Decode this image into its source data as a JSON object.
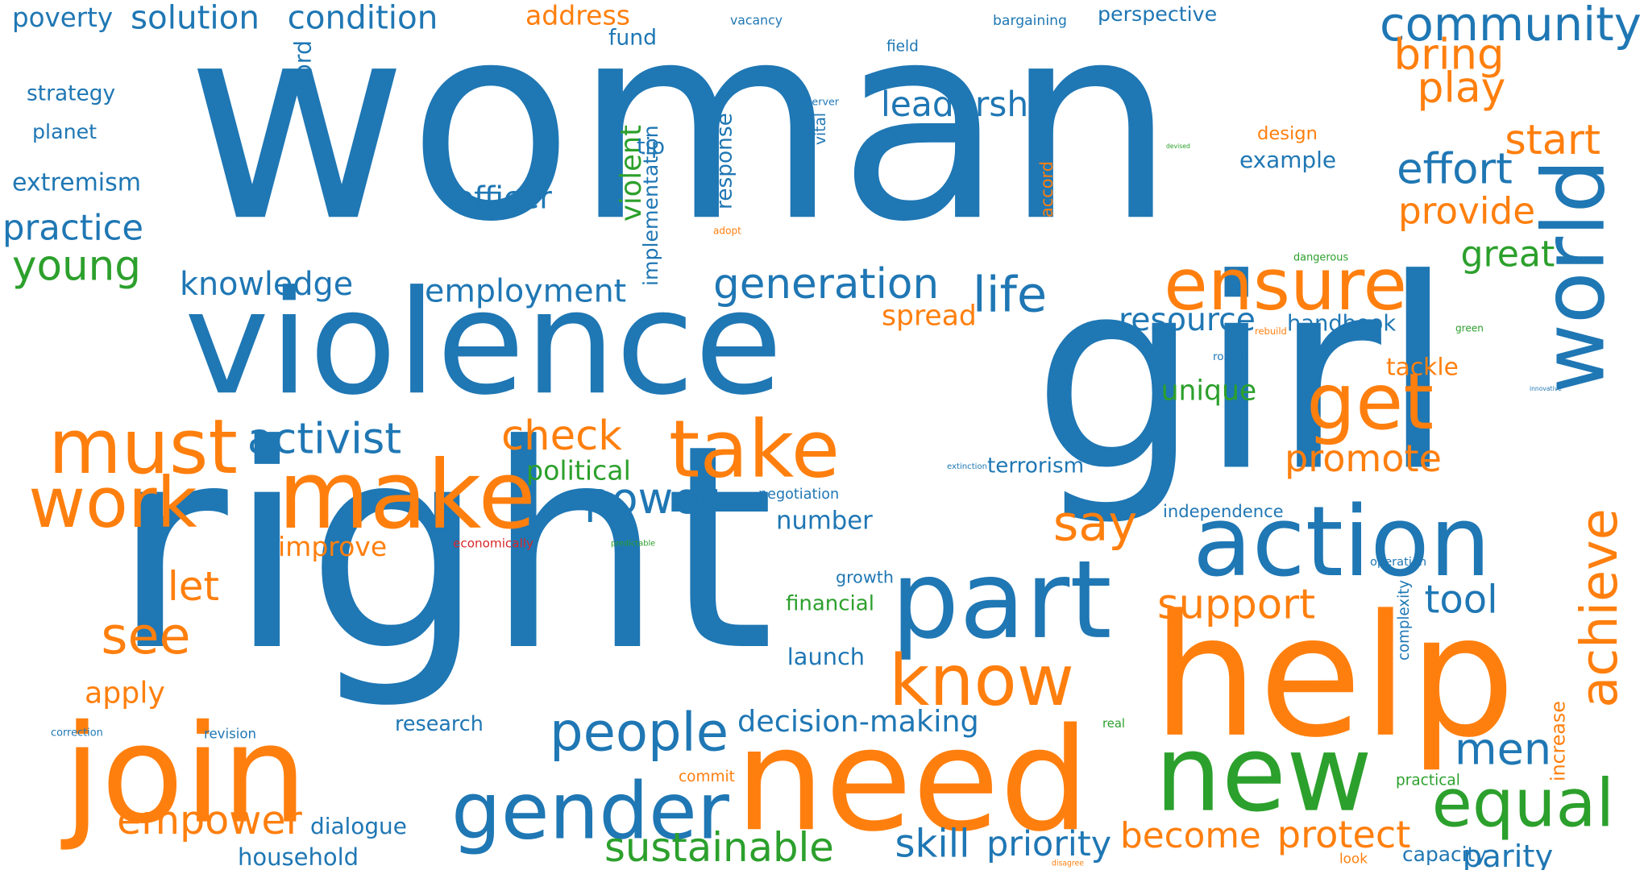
{
  "colors": {
    "blue": "#1f77b4",
    "orange": "#ff7f0e",
    "green": "#2ca02c",
    "red": "#d62728"
  },
  "words": [
    {
      "text": "woman",
      "color": "blue"
    },
    {
      "text": "girl",
      "color": "blue"
    },
    {
      "text": "violence",
      "color": "blue"
    },
    {
      "text": "right",
      "color": "blue"
    },
    {
      "text": "help",
      "color": "orange"
    },
    {
      "text": "need",
      "color": "orange"
    },
    {
      "text": "world",
      "color": "blue"
    },
    {
      "text": "join",
      "color": "orange"
    },
    {
      "text": "new",
      "color": "green"
    },
    {
      "text": "make",
      "color": "orange"
    },
    {
      "text": "action",
      "color": "blue"
    },
    {
      "text": "part",
      "color": "blue"
    },
    {
      "text": "achieve",
      "color": "orange"
    },
    {
      "text": "ensure",
      "color": "orange"
    },
    {
      "text": "take",
      "color": "orange"
    },
    {
      "text": "must",
      "color": "orange"
    },
    {
      "text": "gender",
      "color": "blue"
    },
    {
      "text": "know",
      "color": "orange"
    },
    {
      "text": "equal",
      "color": "green"
    },
    {
      "text": "get",
      "color": "orange"
    },
    {
      "text": "work",
      "color": "orange"
    },
    {
      "text": "community",
      "color": "blue"
    },
    {
      "text": "people",
      "color": "blue"
    },
    {
      "text": "empower",
      "color": "orange"
    },
    {
      "text": "power",
      "color": "blue"
    },
    {
      "text": "life",
      "color": "blue"
    },
    {
      "text": "men",
      "color": "blue"
    },
    {
      "text": "young",
      "color": "green"
    },
    {
      "text": "see",
      "color": "orange"
    },
    {
      "text": "activist",
      "color": "blue"
    },
    {
      "text": "become",
      "color": "orange"
    },
    {
      "text": "generation",
      "color": "blue"
    },
    {
      "text": "sustainable",
      "color": "green"
    },
    {
      "text": "say",
      "color": "orange"
    },
    {
      "text": "check",
      "color": "orange"
    },
    {
      "text": "employment",
      "color": "blue"
    },
    {
      "text": "knowledge",
      "color": "blue"
    },
    {
      "text": "decision-making",
      "color": "blue"
    },
    {
      "text": "support",
      "color": "orange"
    },
    {
      "text": "skill",
      "color": "blue"
    },
    {
      "text": "priority",
      "color": "blue"
    },
    {
      "text": "bring",
      "color": "orange"
    },
    {
      "text": "protect",
      "color": "orange"
    },
    {
      "text": "provide",
      "color": "orange"
    },
    {
      "text": "play",
      "color": "orange"
    },
    {
      "text": "effort",
      "color": "blue"
    },
    {
      "text": "leadership",
      "color": "blue"
    },
    {
      "text": "solution",
      "color": "blue"
    },
    {
      "text": "condition",
      "color": "blue"
    },
    {
      "text": "practice",
      "color": "blue"
    },
    {
      "text": "start",
      "color": "orange"
    },
    {
      "text": "promote",
      "color": "orange"
    },
    {
      "text": "let",
      "color": "orange"
    },
    {
      "text": "tool",
      "color": "blue"
    },
    {
      "text": "resource",
      "color": "blue"
    },
    {
      "text": "poverty",
      "color": "blue"
    },
    {
      "text": "officer",
      "color": "blue"
    },
    {
      "text": "great",
      "color": "green"
    },
    {
      "text": "violent",
      "color": "green"
    },
    {
      "text": "address",
      "color": "orange"
    },
    {
      "text": "improve",
      "color": "orange"
    },
    {
      "text": "apply",
      "color": "orange"
    },
    {
      "text": "dialogue",
      "color": "blue"
    },
    {
      "text": "number",
      "color": "blue"
    },
    {
      "text": "handbook",
      "color": "blue"
    },
    {
      "text": "parity",
      "color": "blue"
    },
    {
      "text": "tackle",
      "color": "orange"
    },
    {
      "text": "extremism",
      "color": "blue"
    },
    {
      "text": "household",
      "color": "blue"
    },
    {
      "text": "example",
      "color": "blue"
    },
    {
      "text": "terrorism",
      "color": "blue"
    },
    {
      "text": "response",
      "color": "blue"
    },
    {
      "text": "capacity",
      "color": "blue"
    },
    {
      "text": "political",
      "color": "green"
    },
    {
      "text": "word",
      "color": "blue"
    },
    {
      "text": "strategy",
      "color": "blue"
    },
    {
      "text": "spread",
      "color": "orange"
    },
    {
      "text": "unique",
      "color": "green"
    },
    {
      "text": "independence",
      "color": "blue"
    },
    {
      "text": "perspective",
      "color": "blue"
    },
    {
      "text": "research",
      "color": "blue"
    },
    {
      "text": "planet",
      "color": "blue"
    },
    {
      "text": "design",
      "color": "orange"
    },
    {
      "text": "growth",
      "color": "blue"
    },
    {
      "text": "launch",
      "color": "blue"
    },
    {
      "text": "negotiation",
      "color": "blue"
    },
    {
      "text": "fund",
      "color": "blue"
    },
    {
      "text": "financial",
      "color": "green"
    },
    {
      "text": "commit",
      "color": "orange"
    },
    {
      "text": "practical",
      "color": "green"
    },
    {
      "text": "bargaining",
      "color": "blue"
    },
    {
      "text": "field",
      "color": "blue"
    },
    {
      "text": "vacancy",
      "color": "blue"
    },
    {
      "text": "economically",
      "color": "red"
    },
    {
      "text": "increase",
      "color": "orange"
    },
    {
      "text": "accord",
      "color": "orange"
    },
    {
      "text": "implementation",
      "color": "blue"
    },
    {
      "text": "complexity",
      "color": "blue"
    },
    {
      "text": "look",
      "color": "orange"
    },
    {
      "text": "adopt",
      "color": "orange"
    },
    {
      "text": "dangerous",
      "color": "green"
    },
    {
      "text": "operation",
      "color": "blue"
    },
    {
      "text": "roster",
      "color": "blue"
    },
    {
      "text": "correction",
      "color": "blue"
    },
    {
      "text": "revision",
      "color": "blue"
    },
    {
      "text": "observer",
      "color": "blue"
    },
    {
      "text": "real",
      "color": "green"
    },
    {
      "text": "green",
      "color": "green"
    },
    {
      "text": "tip",
      "color": "blue"
    },
    {
      "text": "vital",
      "color": "blue"
    },
    {
      "text": "extinction",
      "color": "blue"
    },
    {
      "text": "disagree",
      "color": "orange"
    },
    {
      "text": "rebuild",
      "color": "orange"
    },
    {
      "text": "predictable",
      "color": "green"
    },
    {
      "text": "devised",
      "color": "green"
    },
    {
      "text": "innovative",
      "color": "blue"
    }
  ]
}
